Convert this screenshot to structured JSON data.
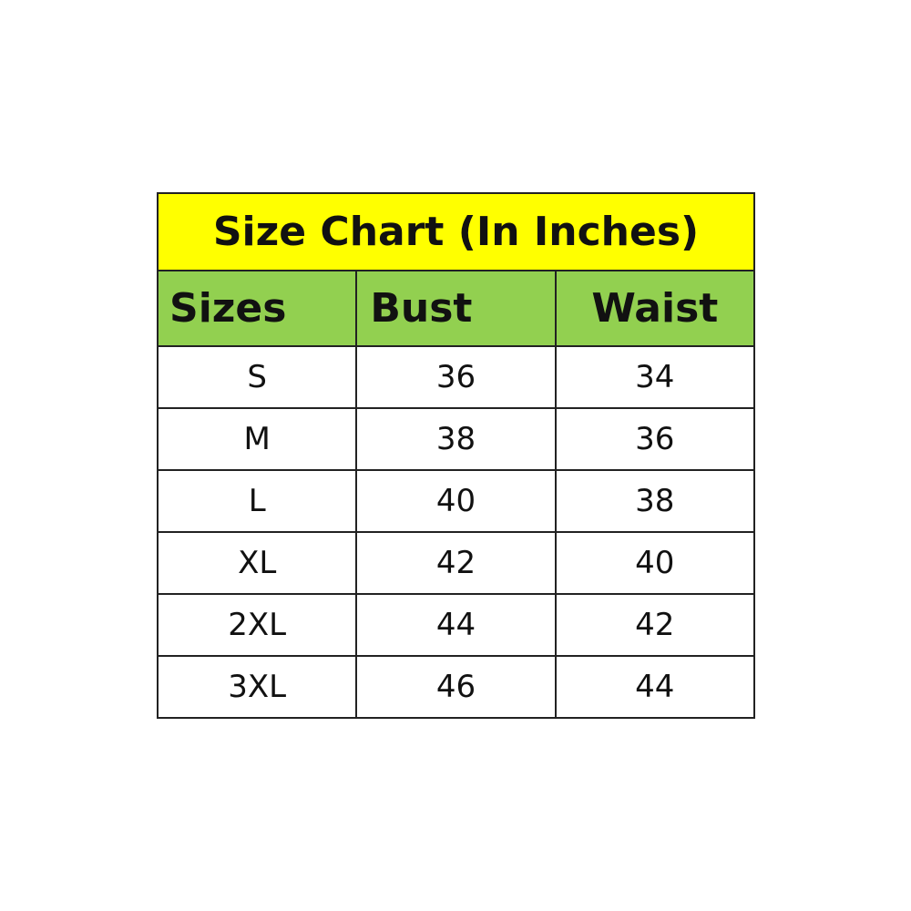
{
  "title": "Size Chart (In Inches)",
  "colors": {
    "title_bg": "#FFFF00",
    "header_bg": "#92D050"
  },
  "headers": [
    "Sizes",
    "Bust",
    "Waist"
  ],
  "rows": [
    [
      "S",
      "36",
      "34"
    ],
    [
      "M",
      "38",
      "36"
    ],
    [
      "L",
      "40",
      "38"
    ],
    [
      "XL",
      "42",
      "40"
    ],
    [
      "2XL",
      "44",
      "42"
    ],
    [
      "3XL",
      "46",
      "44"
    ]
  ]
}
